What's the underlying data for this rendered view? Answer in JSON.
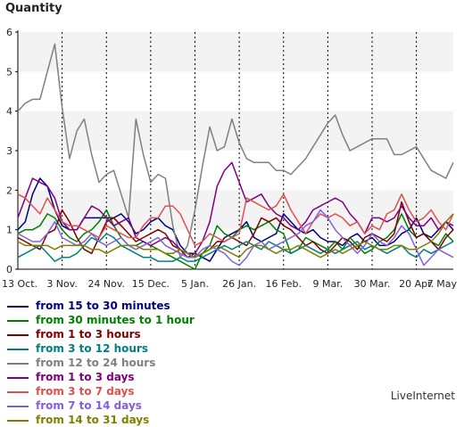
{
  "chart_data": {
    "type": "line",
    "title": "Quantity",
    "xlabel": "",
    "ylabel": "",
    "ylim": [
      0,
      6
    ],
    "grid": false,
    "legend_position": "bottom-left",
    "y_ticks": [
      "0",
      "1",
      "2",
      "3",
      "4",
      "5",
      "6"
    ],
    "x_tick_labels": [
      "13 Oct.",
      "3 Nov.",
      "24 Nov.",
      "15 Dec.",
      "5 Jan.",
      "26 Jan.",
      "16 Feb.",
      "9 Mar.",
      "30 Mar.",
      "20 Apr.",
      "7 May"
    ],
    "x": [
      "13 Oct.",
      "16 Oct.",
      "20 Oct.",
      "23 Oct.",
      "27 Oct.",
      "30 Oct.",
      "3 Nov.",
      "6 Nov.",
      "10 Nov.",
      "13 Nov.",
      "17 Nov.",
      "20 Nov.",
      "24 Nov.",
      "27 Nov.",
      "1 Dec.",
      "4 Dec.",
      "8 Dec.",
      "11 Dec.",
      "15 Dec.",
      "18 Dec.",
      "22 Dec.",
      "25 Dec.",
      "29 Dec.",
      "1 Jan.",
      "5 Jan.",
      "8 Jan.",
      "12 Jan.",
      "15 Jan.",
      "19 Jan.",
      "22 Jan.",
      "26 Jan.",
      "29 Jan.",
      "2 Feb.",
      "5 Feb.",
      "9 Feb.",
      "12 Feb.",
      "16 Feb.",
      "19 Feb.",
      "23 Feb.",
      "26 Feb.",
      "2 Mar.",
      "5 Mar.",
      "9 Mar.",
      "12 Mar.",
      "16 Mar.",
      "19 Mar.",
      "23 Mar.",
      "26 Mar.",
      "30 Mar.",
      "2 Apr.",
      "6 Apr.",
      "9 Apr.",
      "13 Apr.",
      "16 Apr.",
      "20 Apr.",
      "23 Apr.",
      "27 Apr.",
      "30 Apr.",
      "4 May",
      "7 May"
    ],
    "series": [
      {
        "name": "from 15 to 30 minutes",
        "color": "#000080",
        "values": [
          1.0,
          1.2,
          1.9,
          2.3,
          2.1,
          1.5,
          1.1,
          1.0,
          1.0,
          1.3,
          1.3,
          1.3,
          1.3,
          1.3,
          1.4,
          1.2,
          0.9,
          1.0,
          1.2,
          1.3,
          1.1,
          1.0,
          0.6,
          0.4,
          0.4,
          0.3,
          0.2,
          0.5,
          0.8,
          0.9,
          1.0,
          1.2,
          0.8,
          0.7,
          0.8,
          0.9,
          1.4,
          1.2,
          1.0,
          0.9,
          1.0,
          0.8,
          0.7,
          0.7,
          0.6,
          0.8,
          0.9,
          0.7,
          0.8,
          0.6,
          0.6,
          0.7,
          0.9,
          1.0,
          1.3,
          0.9,
          0.8,
          1.0,
          1.2,
          1.0
        ]
      },
      {
        "name": "from 30 minutes to 1 hour",
        "color": "#008000",
        "values": [
          0.9,
          1.0,
          1.0,
          1.1,
          1.4,
          1.3,
          1.0,
          0.8,
          0.7,
          0.9,
          1.0,
          1.2,
          1.5,
          1.1,
          0.8,
          0.6,
          0.6,
          0.7,
          0.6,
          0.5,
          0.4,
          0.3,
          0.2,
          0.1,
          0.0,
          0.4,
          0.6,
          1.1,
          0.9,
          0.8,
          1.0,
          1.1,
          1.0,
          1.1,
          1.2,
          1.0,
          0.9,
          0.4,
          0.5,
          0.8,
          0.7,
          0.6,
          0.5,
          0.7,
          0.5,
          0.8,
          0.6,
          0.4,
          0.5,
          0.7,
          0.8,
          1.0,
          1.4,
          1.0,
          0.8,
          0.9,
          0.7,
          0.6,
          0.9,
          0.7
        ]
      },
      {
        "name": "from 1 to 3 hours",
        "color": "#800000",
        "values": [
          0.8,
          0.7,
          0.6,
          0.5,
          0.9,
          1.0,
          1.5,
          1.2,
          0.8,
          0.5,
          0.4,
          0.8,
          1.2,
          1.3,
          1.1,
          0.9,
          0.7,
          0.8,
          0.9,
          1.0,
          0.9,
          0.6,
          0.5,
          0.4,
          0.3,
          0.4,
          0.5,
          0.7,
          0.7,
          0.8,
          0.7,
          0.6,
          0.9,
          1.3,
          1.2,
          1.3,
          1.1,
          1.0,
          0.8,
          0.6,
          0.7,
          0.5,
          0.4,
          0.6,
          0.8,
          0.7,
          0.5,
          0.8,
          0.9,
          0.8,
          0.7,
          0.9,
          1.7,
          1.2,
          0.8,
          0.9,
          0.7,
          0.5,
          0.8,
          1.0
        ]
      },
      {
        "name": "from 3 to 12 hours",
        "color": "#008080",
        "values": [
          0.3,
          0.4,
          0.5,
          0.6,
          0.4,
          0.2,
          0.3,
          0.3,
          0.4,
          0.6,
          0.8,
          0.7,
          0.9,
          0.8,
          0.6,
          0.5,
          0.4,
          0.3,
          0.3,
          0.2,
          0.2,
          0.2,
          0.3,
          0.2,
          0.2,
          0.3,
          0.4,
          0.5,
          0.6,
          0.5,
          0.6,
          0.7,
          0.6,
          0.5,
          0.7,
          0.6,
          0.5,
          0.4,
          0.5,
          0.6,
          0.5,
          0.4,
          0.5,
          0.4,
          0.5,
          0.6,
          0.7,
          0.5,
          0.6,
          0.5,
          0.4,
          0.5,
          0.6,
          0.4,
          0.3,
          0.5,
          0.4,
          0.5,
          0.6,
          0.7
        ]
      },
      {
        "name": "from 12 to 24 hours",
        "color": "#808080",
        "values": [
          4.0,
          4.2,
          4.3,
          4.3,
          5.0,
          5.7,
          4.1,
          2.8,
          3.5,
          3.8,
          2.9,
          2.2,
          2.4,
          2.5,
          1.9,
          1.3,
          3.8,
          2.9,
          2.2,
          2.4,
          2.3,
          1.1,
          0.3,
          0.6,
          1.5,
          2.6,
          3.6,
          3.0,
          3.1,
          3.8,
          3.2,
          2.8,
          2.7,
          2.7,
          2.7,
          2.5,
          2.5,
          2.4,
          2.6,
          2.8,
          3.1,
          3.4,
          3.7,
          3.9,
          3.4,
          3.0,
          3.1,
          3.2,
          3.3,
          3.3,
          3.3,
          2.9,
          2.9,
          3.0,
          3.1,
          2.8,
          2.5,
          2.4,
          2.3,
          2.7
        ]
      },
      {
        "name": "from 1 to 3 days",
        "color": "#800080",
        "values": [
          1.3,
          1.8,
          2.3,
          2.2,
          2.1,
          1.8,
          1.2,
          1.0,
          1.0,
          1.3,
          1.6,
          1.5,
          1.3,
          1.1,
          1.2,
          1.3,
          0.8,
          0.7,
          0.6,
          0.7,
          0.8,
          0.7,
          0.5,
          0.3,
          0.4,
          0.7,
          1.2,
          2.1,
          2.5,
          2.7,
          2.2,
          1.7,
          1.8,
          1.9,
          1.6,
          1.4,
          1.3,
          1.1,
          1.0,
          1.2,
          1.5,
          1.6,
          1.7,
          1.8,
          1.7,
          1.4,
          1.2,
          0.9,
          1.3,
          1.3,
          1.2,
          1.3,
          1.6,
          1.3,
          1.1,
          1.1,
          1.3,
          1.0,
          1.2,
          1.1
        ]
      },
      {
        "name": "from 3 to 7 days",
        "color": "#e05050",
        "values": [
          1.9,
          1.8,
          1.6,
          1.4,
          1.8,
          1.5,
          1.2,
          1.1,
          1.1,
          1.0,
          0.9,
          0.8,
          1.1,
          1.0,
          0.9,
          0.8,
          0.8,
          1.1,
          1.3,
          1.3,
          1.6,
          1.6,
          1.4,
          1.0,
          0.6,
          0.7,
          0.9,
          0.8,
          0.7,
          0.8,
          0.9,
          1.8,
          1.7,
          1.6,
          1.5,
          1.6,
          1.9,
          1.5,
          1.2,
          0.9,
          1.2,
          1.4,
          1.3,
          1.4,
          1.3,
          1.1,
          1.2,
          0.9,
          1.1,
          1.0,
          1.4,
          1.5,
          1.9,
          1.5,
          1.2,
          1.3,
          1.5,
          1.2,
          1.0,
          1.4
        ]
      },
      {
        "name": "from 7 to 14 days",
        "color": "#8060e0",
        "values": [
          0.9,
          0.8,
          0.7,
          0.7,
          0.9,
          1.2,
          0.8,
          0.7,
          0.6,
          0.7,
          0.9,
          0.7,
          0.6,
          0.7,
          0.8,
          0.6,
          0.5,
          0.6,
          0.7,
          0.8,
          0.6,
          0.5,
          0.4,
          0.3,
          0.3,
          0.5,
          0.6,
          0.5,
          0.4,
          0.2,
          0.1,
          0.3,
          0.6,
          0.7,
          0.5,
          0.6,
          0.7,
          0.8,
          0.9,
          1.1,
          1.2,
          1.5,
          1.3,
          1.0,
          0.8,
          0.6,
          0.4,
          0.6,
          0.9,
          0.7,
          0.6,
          0.8,
          1.1,
          0.9,
          0.5,
          0.1,
          0.3,
          0.5,
          0.4,
          0.3
        ]
      },
      {
        "name": "from 14 to 31 days",
        "color": "#808000",
        "values": [
          0.7,
          0.6,
          0.6,
          0.6,
          0.6,
          0.5,
          0.6,
          0.6,
          0.6,
          0.6,
          0.5,
          0.5,
          0.4,
          0.5,
          0.6,
          0.6,
          0.6,
          0.5,
          0.5,
          0.5,
          0.4,
          0.4,
          0.5,
          0.4,
          0.3,
          0.4,
          0.5,
          0.6,
          0.5,
          0.4,
          0.3,
          0.5,
          0.6,
          0.6,
          0.5,
          0.4,
          0.5,
          0.5,
          0.6,
          0.5,
          0.4,
          0.3,
          0.4,
          0.5,
          0.4,
          0.5,
          0.6,
          0.7,
          0.6,
          0.5,
          0.5,
          0.6,
          0.6,
          0.5,
          0.5,
          0.6,
          0.7,
          0.9,
          1.2,
          1.4
        ]
      }
    ]
  },
  "brand": "LiveInternet"
}
